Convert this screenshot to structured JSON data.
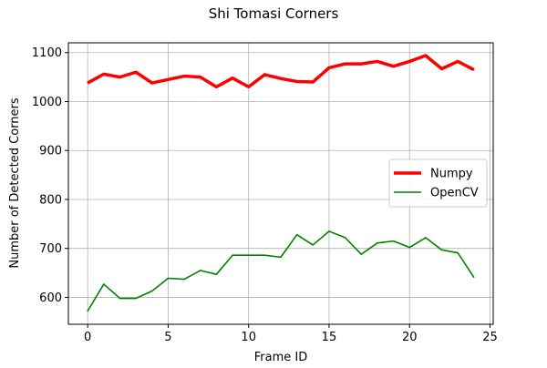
{
  "chart_data": {
    "type": "line",
    "title": "Shi Tomasi Corners",
    "xlabel": "Frame ID",
    "ylabel": "Number of Detected Corners",
    "xlim": [
      -1.2,
      25.2
    ],
    "ylim": [
      545,
      1120
    ],
    "xticks": [
      0,
      5,
      10,
      15,
      20,
      25
    ],
    "yticks": [
      600,
      700,
      800,
      900,
      1000,
      1100
    ],
    "grid": true,
    "legend_position": "center-right",
    "x": [
      0,
      1,
      2,
      3,
      4,
      5,
      6,
      7,
      8,
      9,
      10,
      11,
      12,
      13,
      14,
      15,
      16,
      17,
      18,
      19,
      20,
      21,
      22,
      23,
      24
    ],
    "series": [
      {
        "name": "Numpy",
        "color": "#ff0000",
        "values": [
          1038,
          1056,
          1050,
          1060,
          1038,
          1045,
          1052,
          1050,
          1030,
          1048,
          1030,
          1055,
          1047,
          1041,
          1040,
          1069,
          1077,
          1077,
          1082,
          1072,
          1082,
          1094,
          1067,
          1082,
          1065
        ]
      },
      {
        "name": "OpenCV",
        "color": "#008000",
        "values": [
          572,
          627,
          598,
          598,
          613,
          639,
          637,
          655,
          647,
          686,
          686,
          686,
          682,
          728,
          707,
          735,
          722,
          688,
          711,
          715,
          702,
          722,
          697,
          691,
          641
        ]
      }
    ]
  }
}
